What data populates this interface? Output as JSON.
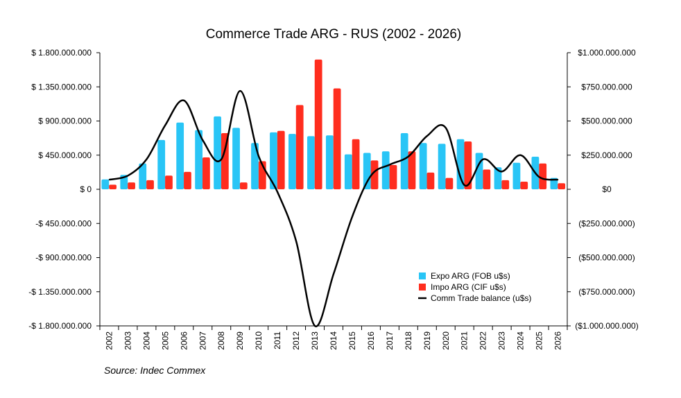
{
  "chart_data": {
    "type": "bar",
    "title": "Commerce Trade ARG - RUS (2002 - 2026)",
    "source": "Source: Indec Commex",
    "categories": [
      "2002",
      "2003",
      "2004",
      "2005",
      "2006",
      "2007",
      "2008",
      "2009",
      "2010",
      "2011",
      "2012",
      "2013",
      "2014",
      "2015",
      "2016",
      "2017",
      "2018",
      "2019",
      "2020",
      "2021",
      "2022",
      "2023",
      "2024",
      "2025",
      "2026"
    ],
    "left_axis": {
      "ylim": [
        -1800000000,
        1800000000
      ],
      "ticks": [
        1800000000,
        1350000000,
        900000000,
        450000000,
        0,
        -450000000,
        -900000000,
        -1350000000,
        -1800000000
      ],
      "tick_labels": [
        "$ 1.800.000.000",
        "$ 1.350.000.000",
        "$ 900.000.000",
        "$ 450.000.000",
        "$ 0",
        "-$ 450.000.000",
        "-$ 900.000.000",
        "-$ 1.350.000.000",
        "-$ 1.800.000.000"
      ]
    },
    "right_axis": {
      "ylim": [
        -1000000000,
        1000000000
      ],
      "ticks": [
        1000000000,
        750000000,
        500000000,
        250000000,
        0,
        -250000000,
        -500000000,
        -750000000,
        -1000000000
      ],
      "tick_labels": [
        "$1.000.000.000",
        "$750.000.000",
        "$500.000.000",
        "$250.000.000",
        "$0",
        "($250.000.000)",
        "($500.000.000)",
        "($750.000.000)",
        "($1.000.000.000)"
      ]
    },
    "series": [
      {
        "name": "Expo ARG (FOB u$s)",
        "type": "bar",
        "axis": "left",
        "color": "#29c5f6",
        "values": [
          130000000,
          190000000,
          340000000,
          650000000,
          880000000,
          780000000,
          960000000,
          810000000,
          610000000,
          750000000,
          730000000,
          700000000,
          710000000,
          460000000,
          480000000,
          500000000,
          740000000,
          610000000,
          600000000,
          660000000,
          480000000,
          290000000,
          350000000,
          430000000,
          150000000
        ]
      },
      {
        "name": "Impo ARG (CIF u$s)",
        "type": "bar",
        "axis": "left",
        "color": "#ff2d1e",
        "values": [
          60000000,
          90000000,
          120000000,
          180000000,
          230000000,
          420000000,
          740000000,
          90000000,
          370000000,
          770000000,
          1110000000,
          1710000000,
          1330000000,
          660000000,
          380000000,
          320000000,
          500000000,
          220000000,
          150000000,
          630000000,
          260000000,
          120000000,
          100000000,
          340000000,
          80000000
        ]
      },
      {
        "name": "Comm Trade balance (u$s)",
        "type": "line",
        "axis": "right",
        "color": "#000000",
        "values": [
          70000000,
          100000000,
          220000000,
          470000000,
          650000000,
          360000000,
          220000000,
          720000000,
          240000000,
          -20000000,
          -380000000,
          -1000000000,
          -620000000,
          -200000000,
          100000000,
          180000000,
          240000000,
          390000000,
          450000000,
          30000000,
          220000000,
          130000000,
          250000000,
          90000000,
          70000000
        ]
      }
    ],
    "legend_position": "bottom-right",
    "grid": false
  }
}
